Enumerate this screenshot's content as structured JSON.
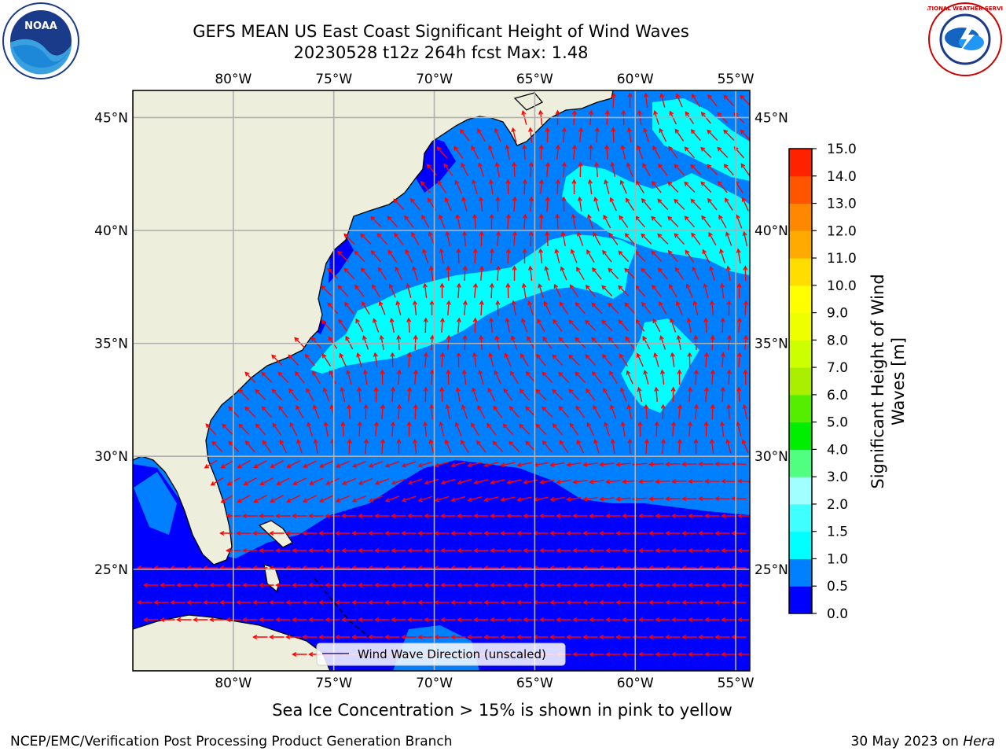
{
  "title": {
    "line1": "GEFS MEAN US East Coast Significant Height of Wind Waves",
    "line2": "20230528 t12z 264h fcst   Max: 1.48"
  },
  "logos": {
    "left": {
      "icon": "noaa-logo",
      "text": "NOAA",
      "ring_text": "NATIONAL OCEANIC AND ATMOSPHERIC ADMINISTRATION · U.S. DEPARTMENT OF COMMERCE"
    },
    "right": {
      "icon": "nws-logo",
      "ring_text": "NATIONAL WEATHER SERVICE"
    }
  },
  "map": {
    "lon_ticks": [
      "80°W",
      "75°W",
      "70°W",
      "65°W",
      "60°W",
      "55°W"
    ],
    "lat_ticks": [
      "45°N",
      "40°N",
      "35°N",
      "30°N",
      "25°N"
    ],
    "lon_values": [
      -80,
      -75,
      -70,
      -65,
      -60,
      -55
    ],
    "lat_values": [
      45,
      40,
      35,
      30,
      25
    ],
    "lon_range": [
      -85,
      -54.3
    ],
    "lat_range": [
      20.5,
      46.2
    ],
    "grid": true,
    "colors": {
      "land": "#eeeedc",
      "band_0_0p5": "#0000ff",
      "band_0p5_1": "#0080ff",
      "band_1_1p5": "#00ffff",
      "arrow": "#ff0000",
      "grid": "#b0b0b0"
    },
    "legend": {
      "label": "Wind Wave Direction (unscaled)",
      "placement": "lower-center"
    }
  },
  "colorbar": {
    "label": "Significant Height of Wind Waves [m]",
    "label_line1": "Significant Height of Wind",
    "label_line2": "Waves [m]",
    "ticks": [
      "0.0",
      "0.5",
      "1.0",
      "1.5",
      "2.0",
      "3.0",
      "4.0",
      "5.0",
      "6.0",
      "7.0",
      "8.0",
      "9.0",
      "10.0",
      "11.0",
      "12.0",
      "13.0",
      "14.0",
      "15.0"
    ],
    "colors": [
      "#0000ff",
      "#0080ff",
      "#00ffff",
      "#40ffff",
      "#a0ffff",
      "#50ff80",
      "#00ee00",
      "#55ee00",
      "#aaee00",
      "#ccff00",
      "#eeff00",
      "#ffff00",
      "#ffdd00",
      "#ffaa00",
      "#ff8800",
      "#ff5500",
      "#ff2200",
      "#ff0000"
    ]
  },
  "subtitle": "Sea Ice Concentration > 15% is shown in pink to yellow",
  "footer": {
    "left": "NCEP/EMC/Verification Post Processing Product Generation Branch",
    "right_prefix": "30 May 2023 on ",
    "right_host": "Hera"
  }
}
